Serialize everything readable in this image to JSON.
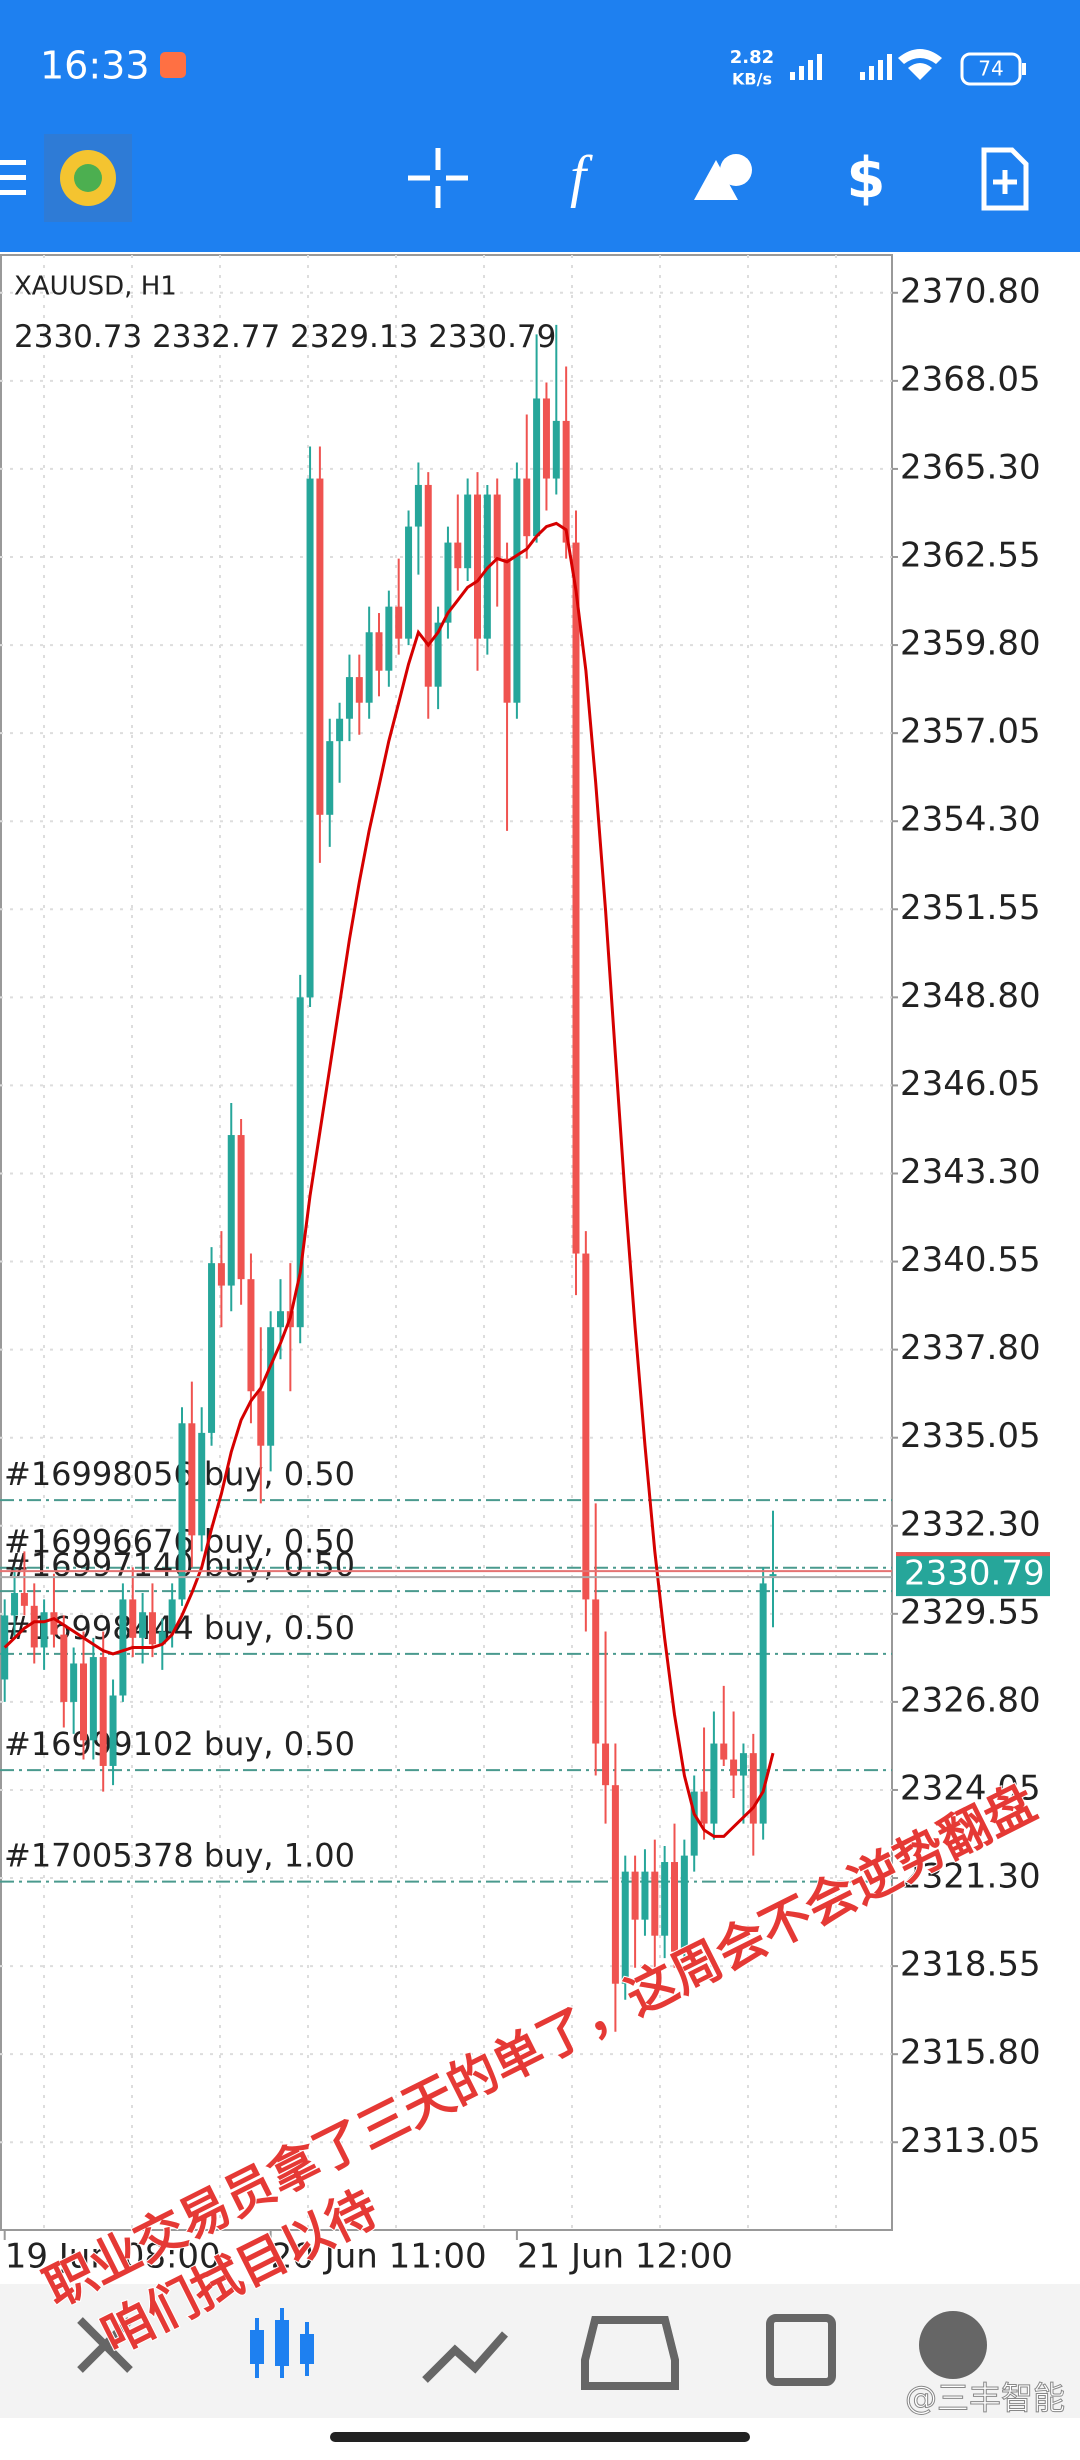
{
  "status": {
    "time": "16:33",
    "speed_value": "2.82",
    "speed_unit": "KB/s",
    "battery": "74"
  },
  "chart_data": {
    "type": "candlestick",
    "symbol": "XAUUSD, H1",
    "ohlc": [
      [
        2327.5,
        2330,
        2326.8,
        2329.5
      ],
      [
        2329.5,
        2331,
        2328.8,
        2330.2
      ],
      [
        2330.2,
        2331.5,
        2329.5,
        2329.8
      ],
      [
        2329.8,
        2330.5,
        2328,
        2328.5
      ],
      [
        2328.5,
        2330,
        2327.8,
        2329.6
      ],
      [
        2329.6,
        2330.8,
        2328.5,
        2328.9
      ],
      [
        2328.9,
        2329.5,
        2326,
        2326.8
      ],
      [
        2326.8,
        2328.5,
        2325.8,
        2328
      ],
      [
        2328,
        2329,
        2325,
        2325.6
      ],
      [
        2325.6,
        2328.8,
        2325,
        2328.2
      ],
      [
        2328.2,
        2329,
        2324,
        2324.8
      ],
      [
        2324.8,
        2327.5,
        2324.2,
        2327
      ],
      [
        2327,
        2330.5,
        2326.8,
        2330
      ],
      [
        2330,
        2331,
        2328.2,
        2328.8
      ],
      [
        2328.8,
        2330.2,
        2328,
        2329.6
      ],
      [
        2329.6,
        2330.5,
        2328.2,
        2328.6
      ],
      [
        2328.6,
        2329.4,
        2327.8,
        2329
      ],
      [
        2329,
        2330.5,
        2328.5,
        2330
      ],
      [
        2330,
        2336,
        2329.8,
        2335.5
      ],
      [
        2335.5,
        2336.8,
        2331,
        2332
      ],
      [
        2332,
        2336,
        2331.5,
        2335.2
      ],
      [
        2335.2,
        2341,
        2334.8,
        2340.5
      ],
      [
        2340.5,
        2341.5,
        2338.5,
        2339.8
      ],
      [
        2339.8,
        2345.5,
        2339,
        2344.5
      ],
      [
        2344.5,
        2345,
        2339.2,
        2340
      ],
      [
        2340,
        2340.8,
        2335.5,
        2336.5
      ],
      [
        2336.5,
        2338.5,
        2333,
        2334.8
      ],
      [
        2334.8,
        2339,
        2334,
        2338.5
      ],
      [
        2338.5,
        2340,
        2337.5,
        2339
      ],
      [
        2339,
        2340.5,
        2336.5,
        2338.5
      ],
      [
        2338.5,
        2349.5,
        2338,
        2348.8
      ],
      [
        2348.8,
        2366,
        2348.5,
        2365
      ],
      [
        2365,
        2366,
        2353,
        2354.5
      ],
      [
        2354.5,
        2357.5,
        2353.5,
        2356.8
      ],
      [
        2356.8,
        2358,
        2355.5,
        2357.5
      ],
      [
        2357.5,
        2359.5,
        2356.8,
        2358.8
      ],
      [
        2358.8,
        2359.5,
        2357,
        2358
      ],
      [
        2358,
        2361,
        2357.5,
        2360.2
      ],
      [
        2360.2,
        2360.8,
        2358.2,
        2359
      ],
      [
        2359,
        2361.5,
        2358.5,
        2361
      ],
      [
        2361,
        2362.5,
        2359.5,
        2360
      ],
      [
        2360,
        2364,
        2359.8,
        2363.5
      ],
      [
        2363.5,
        2365.5,
        2362,
        2364.8
      ],
      [
        2364.8,
        2365.2,
        2357.5,
        2358.5
      ],
      [
        2358.5,
        2361,
        2357.8,
        2360.5
      ],
      [
        2360.5,
        2363.5,
        2360,
        2363
      ],
      [
        2363,
        2364.5,
        2361.5,
        2362.2
      ],
      [
        2362.2,
        2365,
        2361.8,
        2364.5
      ],
      [
        2364.5,
        2365.2,
        2359,
        2360
      ],
      [
        2360,
        2364.8,
        2359.5,
        2364.5
      ],
      [
        2364.5,
        2365,
        2361,
        2362.5
      ],
      [
        2362.5,
        2363,
        2354,
        2358
      ],
      [
        2358,
        2365.5,
        2357.5,
        2365
      ],
      [
        2365,
        2367,
        2362.5,
        2363.2
      ],
      [
        2363.2,
        2369.5,
        2363,
        2367.5
      ],
      [
        2367.5,
        2368,
        2364,
        2365
      ],
      [
        2365,
        2369.8,
        2364.5,
        2366.8
      ],
      [
        2366.8,
        2368.5,
        2362.5,
        2363
      ],
      [
        2363,
        2364,
        2339.5,
        2340.8
      ],
      [
        2340.8,
        2341.5,
        2329,
        2330
      ],
      [
        2330,
        2333,
        2324.5,
        2325.5
      ],
      [
        2325.5,
        2329,
        2323,
        2324.2
      ],
      [
        2324.2,
        2325.5,
        2316.5,
        2318
      ],
      [
        2318,
        2322,
        2317.5,
        2321.5
      ],
      [
        2321.5,
        2322,
        2318.5,
        2320
      ],
      [
        2320,
        2322.2,
        2319.5,
        2321.5
      ],
      [
        2321.5,
        2322.5,
        2318.5,
        2319.5
      ],
      [
        2319.5,
        2322.3,
        2318.8,
        2321.8
      ],
      [
        2321.8,
        2323,
        2318.5,
        2319
      ],
      [
        2319,
        2322.5,
        2318.8,
        2322
      ],
      [
        2322,
        2324.5,
        2321.5,
        2324
      ],
      [
        2324,
        2326,
        2322.5,
        2323
      ],
      [
        2323,
        2326.5,
        2322.5,
        2325.5
      ],
      [
        2325.5,
        2327.3,
        2324.8,
        2325
      ],
      [
        2325,
        2326.5,
        2323.8,
        2324.5
      ],
      [
        2324.5,
        2325.5,
        2323,
        2325.2
      ],
      [
        2325.2,
        2325.8,
        2322,
        2323
      ],
      [
        2323,
        2331,
        2322.5,
        2330.5
      ],
      [
        2330.73,
        2332.77,
        2329.13,
        2330.79
      ]
    ],
    "ma": [
      2328.5,
      2328.8,
      2329.1,
      2329.3,
      2329.3,
      2329.4,
      2329.2,
      2329.0,
      2328.8,
      2328.6,
      2328.4,
      2328.3,
      2328.4,
      2328.5,
      2328.5,
      2328.5,
      2328.6,
      2328.9,
      2329.5,
      2330.2,
      2331,
      2332.2,
      2333.3,
      2334.6,
      2335.6,
      2336.2,
      2336.6,
      2337.3,
      2338,
      2338.8,
      2340.2,
      2342.6,
      2344.6,
      2346.6,
      2348.6,
      2350.6,
      2352.4,
      2354,
      2355.4,
      2356.8,
      2358,
      2359.2,
      2360.2,
      2359.8,
      2360.2,
      2360.8,
      2361.2,
      2361.6,
      2361.8,
      2362.2,
      2362.5,
      2362.4,
      2362.6,
      2362.8,
      2363.2,
      2363.5,
      2363.6,
      2363.4,
      2361.5,
      2359,
      2355.5,
      2351.5,
      2347,
      2342.5,
      2338.5,
      2334.8,
      2331.5,
      2328.8,
      2326.4,
      2324.5,
      2323.3,
      2322.8,
      2322.6,
      2322.6,
      2322.9,
      2323.2,
      2323.5,
      2324,
      2325.2
    ],
    "bull_color": "#26a69a",
    "bear_color": "#ef5350",
    "ma_color": "#d50000",
    "ylim": [
      2310.31,
      2371.98
    ],
    "yticks": [
      {
        "value": 2370.8,
        "label": "2370.80"
      },
      2368.05,
      {
        "value": 2365.3,
        "label": "2365.30"
      },
      2362.55,
      {
        "value": 2359.8,
        "label": "2359.80"
      },
      2357.05,
      {
        "value": 2354.3,
        "label": "2354.30"
      },
      2351.55,
      {
        "value": 2348.8,
        "label": "2348.80"
      },
      2346.05,
      {
        "value": 2343.3,
        "label": "2343.30"
      },
      2340.55,
      {
        "value": 2337.8,
        "label": "2337.80"
      },
      2335.05,
      {
        "value": 2332.3,
        "label": "2332.30"
      },
      2329.55,
      {
        "value": 2326.8,
        "label": "2326.80"
      },
      2324.05,
      {
        "value": 2321.3,
        "label": "2321.30"
      },
      2318.55,
      {
        "value": 2315.8,
        "label": "2315.80"
      },
      2313.05
    ],
    "xticks": [
      {
        "value": 0,
        "label": "19 Jun 08:00"
      },
      {
        "value": 27,
        "label": "20 Jun 11:00"
      },
      {
        "value": 52,
        "label": "21 Jun 12:00"
      }
    ],
    "grid": true,
    "orders": [
      {
        "label": "#16998056 buy, 0.50",
        "price": 2333.1
      },
      {
        "label": "#16996676 buy, 0.50",
        "price": 2330.99
      },
      {
        "label": "#16997140 buy, 0.50",
        "price": 2330.26
      },
      {
        "label": "#16998444 buy, 0.50",
        "price": 2328.3
      },
      {
        "label": "#16999102 buy, 0.50",
        "price": 2324.67
      },
      {
        "label": "#17005378 buy, 1.00",
        "price": 2321.19
      }
    ],
    "annotations": [
      "职业交易员拿了三天的单了，这周会不会逆势翻盘",
      "咱们拭目以待"
    ]
  },
  "watermark": "@三丰智能"
}
